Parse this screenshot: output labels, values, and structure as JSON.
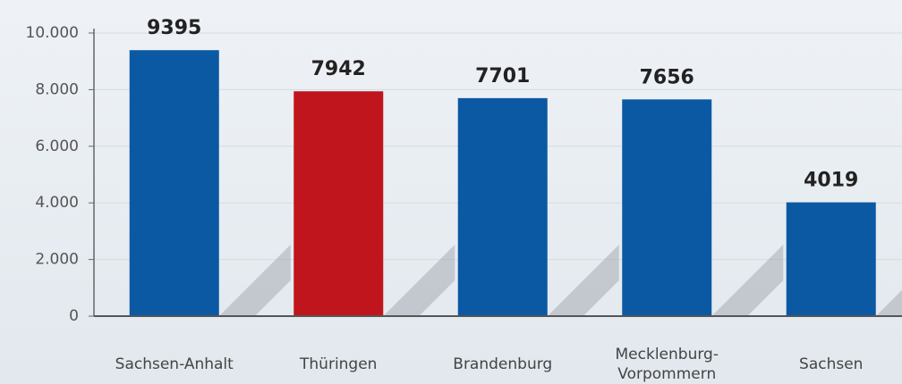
{
  "chart_data": {
    "type": "bar",
    "categories": [
      "Sachsen-Anhalt",
      "Thüringen",
      "Brandenburg",
      "Mecklenburg-\nVorpommern",
      "Sachsen"
    ],
    "values": [
      9395,
      7942,
      7701,
      7656,
      4019
    ],
    "colors": [
      "#0b58a3",
      "#c0151c",
      "#0b58a3",
      "#0b58a3",
      "#0b58a3"
    ],
    "ylim": [
      0,
      10000
    ],
    "yticks": [
      0,
      {
        "value": 2000,
        "label": "2.000"
      },
      {
        "value": 4000,
        "label": "4.000"
      },
      {
        "value": 6000,
        "label": "6.000"
      },
      {
        "value": 8000,
        "label": "8.000"
      },
      {
        "value": 10000,
        "label": "10.000"
      }
    ],
    "grid": true
  }
}
